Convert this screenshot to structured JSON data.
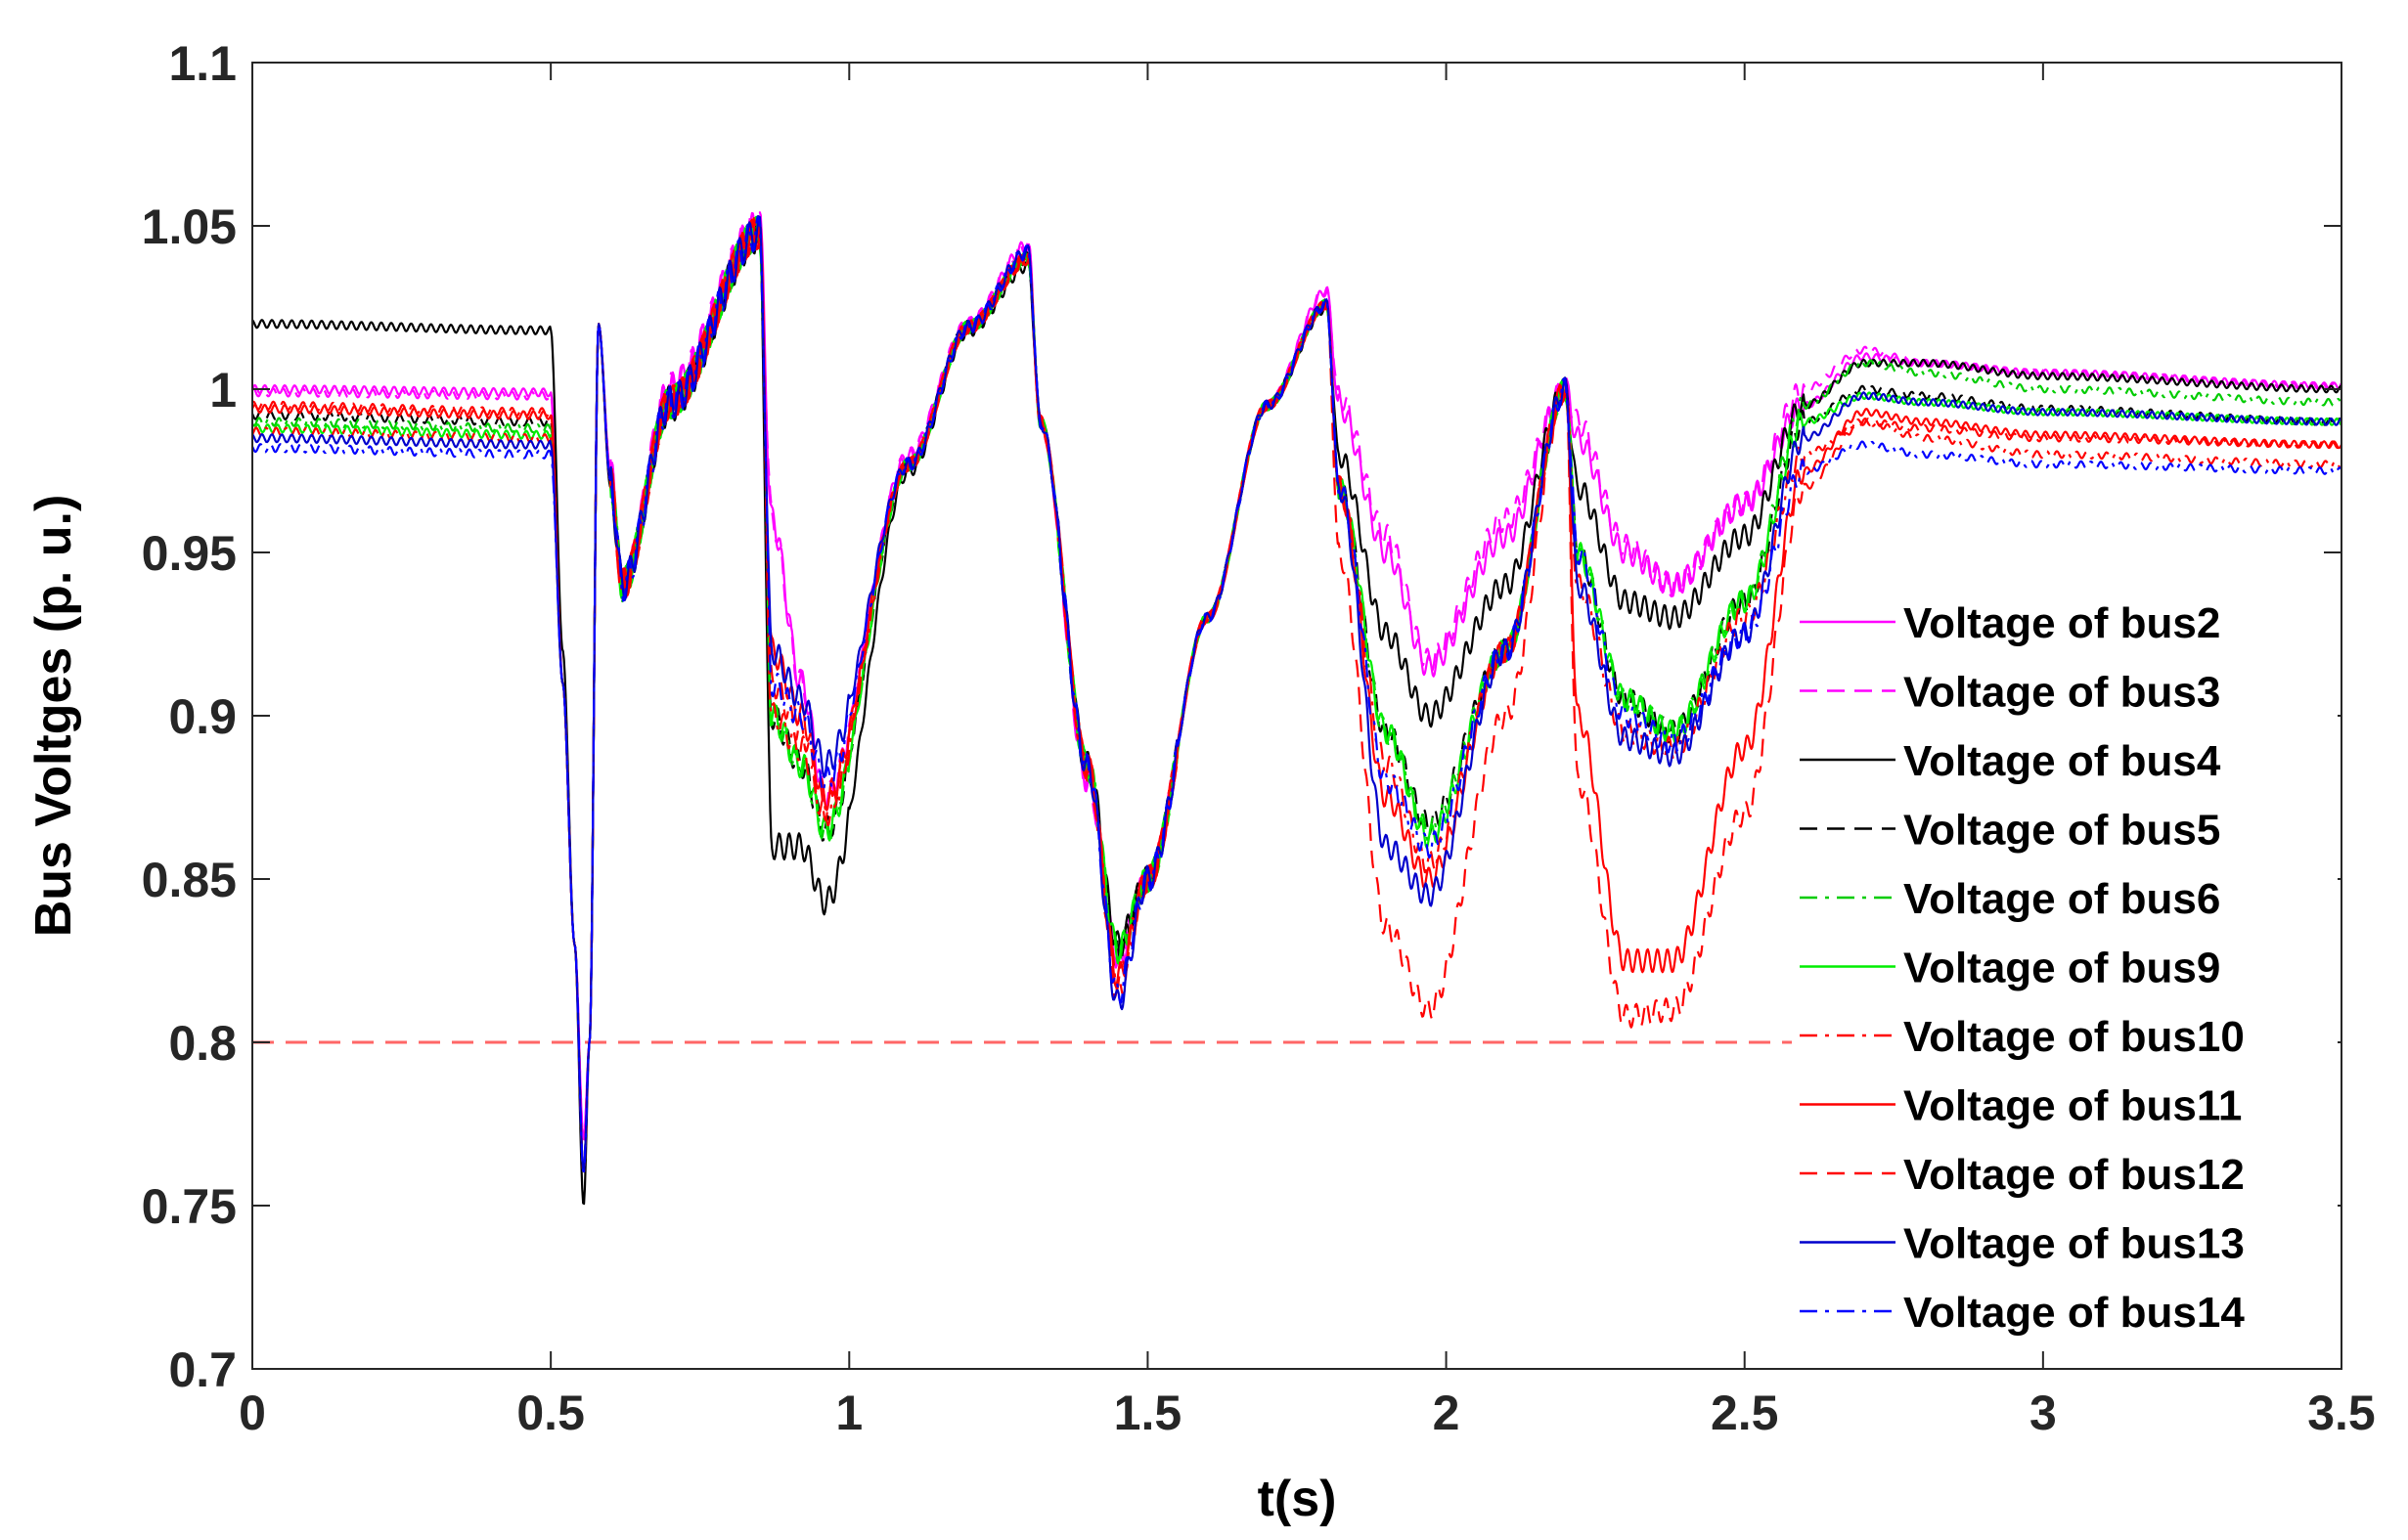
{
  "chart_data": {
    "type": "line",
    "title": "",
    "xlabel": "t(s)",
    "ylabel": "Bus Voltges (p. u.)",
    "xlim": [
      0,
      3.5
    ],
    "ylim": [
      0.7,
      1.1
    ],
    "xticks": [
      0,
      0.5,
      1,
      1.5,
      2,
      2.5,
      3,
      3.5
    ],
    "xtick_labels": [
      "0",
      "0.5",
      "1",
      "1.5",
      "2",
      "2.5",
      "3",
      "3.5"
    ],
    "yticks": [
      0.7,
      0.75,
      0.8,
      0.85,
      0.9,
      0.95,
      1,
      1.05,
      1.1
    ],
    "ytick_labels": [
      "0.7",
      "0.75",
      "0.8",
      "0.85",
      "0.9",
      "0.95",
      "1",
      "1.05",
      "1.1"
    ],
    "grid": false,
    "legend_position": "right",
    "reference_line": {
      "y": 0.8,
      "color": "#ff6666",
      "style": "dashed"
    },
    "key_times": [
      0,
      0.5,
      0.52,
      0.54,
      0.555,
      0.565,
      0.58,
      0.6,
      0.62,
      0.7,
      0.85,
      0.87,
      0.92,
      0.96,
      1.1,
      1.2,
      1.3,
      1.32,
      1.4,
      1.45,
      1.5,
      1.6,
      1.7,
      1.8,
      1.82,
      1.9,
      1.97,
      2.1,
      2.2,
      2.22,
      2.3,
      2.38,
      2.5,
      2.6,
      2.7,
      2.8,
      3.0,
      3.5
    ],
    "series": [
      {
        "name": "Voltage of bus2",
        "color": "#ff00ff",
        "dash": "solid",
        "values": [
          1.0,
          0.999,
          0.91,
          0.83,
          0.77,
          0.8,
          1.02,
          0.975,
          0.94,
          1.0,
          1.05,
          0.96,
          0.91,
          0.875,
          0.98,
          1.02,
          1.044,
          0.99,
          0.88,
          0.826,
          0.85,
          0.93,
          0.995,
          1.03,
          0.995,
          0.95,
          0.915,
          0.955,
          1.0,
          0.985,
          0.95,
          0.94,
          0.965,
          0.995,
          1.01,
          1.008,
          1.005,
          1.001
        ]
      },
      {
        "name": "Voltage of bus3",
        "color": "#ff00ff",
        "dash": "dashed",
        "values": [
          0.999,
          0.998,
          0.91,
          0.83,
          0.77,
          0.8,
          1.02,
          0.975,
          0.94,
          1.0,
          1.05,
          0.96,
          0.91,
          0.875,
          0.98,
          1.02,
          1.044,
          0.99,
          0.88,
          0.826,
          0.85,
          0.93,
          0.995,
          1.03,
          0.998,
          0.955,
          0.917,
          0.96,
          1.0,
          0.99,
          0.952,
          0.94,
          0.965,
          1.0,
          1.012,
          1.008,
          1.005,
          1.001
        ]
      },
      {
        "name": "Voltage of bus4",
        "color": "#000000",
        "dash": "solid",
        "values": [
          1.02,
          1.018,
          0.92,
          0.83,
          0.75,
          0.8,
          1.02,
          0.97,
          0.94,
          0.995,
          1.047,
          0.86,
          0.86,
          0.843,
          0.975,
          1.018,
          1.038,
          0.99,
          0.885,
          0.83,
          0.85,
          0.93,
          0.995,
          1.025,
          0.98,
          0.925,
          0.9,
          0.94,
          1.0,
          0.97,
          0.935,
          0.93,
          0.955,
          0.995,
          1.008,
          1.008,
          1.004,
          1.0
        ]
      },
      {
        "name": "Voltage of bus5",
        "color": "#000000",
        "dash": "dashed",
        "values": [
          0.992,
          0.99,
          0.91,
          0.83,
          0.76,
          0.8,
          1.02,
          0.972,
          0.94,
          0.996,
          1.048,
          0.9,
          0.885,
          0.865,
          0.977,
          1.019,
          1.04,
          0.99,
          0.884,
          0.828,
          0.85,
          0.93,
          0.995,
          1.026,
          0.97,
          0.895,
          0.867,
          0.92,
          1.0,
          0.95,
          0.905,
          0.895,
          0.935,
          0.99,
          1.0,
          0.998,
          0.994,
          0.99
        ]
      },
      {
        "name": "Voltage of bus6",
        "color": "#00cc00",
        "dash": "dashdot",
        "values": [
          0.99,
          0.988,
          0.91,
          0.83,
          0.76,
          0.8,
          1.02,
          0.972,
          0.94,
          0.996,
          1.048,
          0.9,
          0.885,
          0.865,
          0.977,
          1.019,
          1.04,
          0.99,
          0.884,
          0.828,
          0.85,
          0.93,
          0.995,
          1.026,
          0.97,
          0.895,
          0.865,
          0.92,
          1.0,
          0.95,
          0.905,
          0.895,
          0.935,
          0.995,
          1.008,
          1.005,
          1.0,
          0.996
        ]
      },
      {
        "name": "Voltage of bus9",
        "color": "#00ee00",
        "dash": "solid",
        "values": [
          0.988,
          0.986,
          0.91,
          0.83,
          0.76,
          0.8,
          1.02,
          0.972,
          0.94,
          0.996,
          1.048,
          0.9,
          0.885,
          0.865,
          0.977,
          1.019,
          1.04,
          0.99,
          0.884,
          0.828,
          0.85,
          0.93,
          0.995,
          1.026,
          0.97,
          0.895,
          0.863,
          0.92,
          1.0,
          0.95,
          0.905,
          0.895,
          0.935,
          0.99,
          0.998,
          0.996,
          0.993,
          0.99
        ]
      },
      {
        "name": "Voltage of bus10",
        "color": "#ff0000",
        "dash": "dashdot",
        "values": [
          0.987,
          0.985,
          0.91,
          0.83,
          0.76,
          0.8,
          1.02,
          0.972,
          0.94,
          0.996,
          1.048,
          0.9,
          0.89,
          0.87,
          0.977,
          1.019,
          1.04,
          0.99,
          0.884,
          0.82,
          0.85,
          0.93,
          0.995,
          1.026,
          0.97,
          0.885,
          0.855,
          0.92,
          1.0,
          0.94,
          0.895,
          0.89,
          0.93,
          0.98,
          0.99,
          0.985,
          0.98,
          0.977
        ]
      },
      {
        "name": "Voltage of bus11",
        "color": "#ff0000",
        "dash": "solid",
        "values": [
          0.994,
          0.992,
          0.91,
          0.83,
          0.76,
          0.8,
          1.02,
          0.972,
          0.94,
          0.996,
          1.048,
          0.92,
          0.9,
          0.875,
          0.977,
          1.019,
          1.04,
          0.99,
          0.884,
          0.82,
          0.85,
          0.93,
          0.995,
          1.026,
          0.97,
          0.875,
          0.85,
          0.92,
          1.0,
          0.9,
          0.825,
          0.825,
          0.89,
          0.975,
          0.993,
          0.99,
          0.986,
          0.983
        ]
      },
      {
        "name": "Voltage of bus12",
        "color": "#ff0000",
        "dash": "dashed",
        "values": [
          0.995,
          0.993,
          0.91,
          0.83,
          0.76,
          0.8,
          1.02,
          0.972,
          0.94,
          0.996,
          1.048,
          0.91,
          0.895,
          0.872,
          0.977,
          1.019,
          1.04,
          0.99,
          0.884,
          0.815,
          0.85,
          0.93,
          0.995,
          1.026,
          0.95,
          0.835,
          0.81,
          0.9,
          1.0,
          0.88,
          0.808,
          0.81,
          0.87,
          0.97,
          0.99,
          0.988,
          0.985,
          0.983
        ]
      },
      {
        "name": "Voltage of bus13",
        "color": "#0000cc",
        "dash": "solid",
        "values": [
          0.985,
          0.983,
          0.91,
          0.83,
          0.76,
          0.8,
          1.02,
          0.972,
          0.94,
          0.996,
          1.048,
          0.92,
          0.905,
          0.885,
          0.977,
          1.019,
          1.042,
          0.99,
          0.884,
          0.812,
          0.85,
          0.93,
          0.995,
          1.026,
          0.97,
          0.86,
          0.845,
          0.92,
          1.0,
          0.94,
          0.893,
          0.888,
          0.925,
          0.985,
          0.998,
          0.996,
          0.993,
          0.99
        ]
      },
      {
        "name": "Voltage of bus14",
        "color": "#0000ff",
        "dash": "dashdot",
        "values": [
          0.982,
          0.98,
          0.91,
          0.83,
          0.76,
          0.8,
          1.02,
          0.972,
          0.94,
          0.996,
          1.048,
          0.91,
          0.9,
          0.88,
          0.977,
          1.019,
          1.042,
          0.99,
          0.884,
          0.815,
          0.85,
          0.93,
          0.995,
          1.026,
          0.97,
          0.88,
          0.86,
          0.92,
          1.0,
          0.95,
          0.9,
          0.892,
          0.925,
          0.975,
          0.983,
          0.98,
          0.977,
          0.975
        ]
      }
    ]
  }
}
